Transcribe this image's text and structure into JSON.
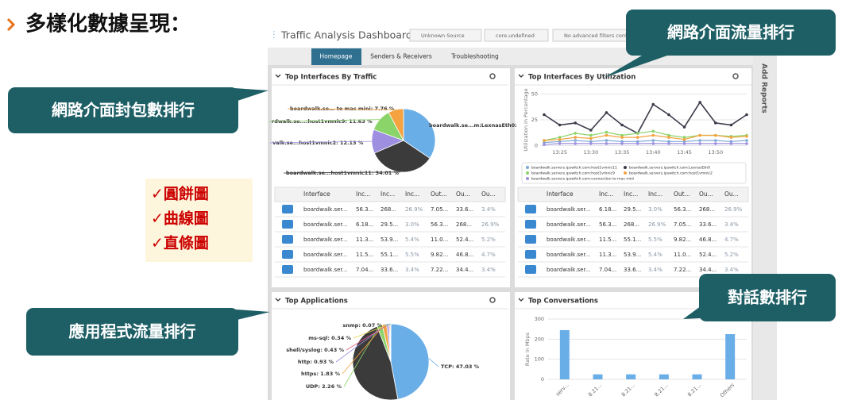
{
  "slide": {
    "title": "多樣化數據呈現：",
    "checklist": [
      "✓圓餅圖",
      "✓曲線圖",
      "✓直條圖"
    ]
  },
  "callouts": [
    "網路介面流量排行",
    "網路介面封包數排行",
    "應用程式流量排行",
    "對話數排行"
  ],
  "dashboard": {
    "title": "Traffic Analysis Dashboard",
    "filters": [
      "Unknown Source",
      "core.undefined",
      "No advanced filters configured"
    ],
    "tabs": [
      "Homepage",
      "Senders & Receivers",
      "Troubleshooting"
    ],
    "side_tab": "Add Reports",
    "panels": [
      {
        "title": "Top Interfaces By Traffic",
        "chart": {
          "type": "pie",
          "labels": [
            "boardwalk.se...m:LexnasEth0:",
            "boardwalk.se...host1vmnic11: 34.01 %",
            "valk.se...host1vmnic2: 12.13 %",
            "rdwalk.se...:host1vmnic9: 11.63 %",
            "boardwalk.se... to mac mini: 7.76 %"
          ],
          "values": [
            34.47,
            34.01,
            12.13,
            11.63,
            7.76
          ],
          "colors": [
            "#6aaee8",
            "#3b3b3b",
            "#9f8fe0",
            "#8bd46a",
            "#f4a340"
          ]
        },
        "table": {
          "columns": [
            "Interface",
            "Inc...",
            "Inc...",
            "Inc...",
            "Out...",
            "Ou...",
            "Ou..."
          ],
          "rows": [
            [
              "boardwalk.ser...",
              "56.3...",
              "268...",
              "26.9%",
              "7.05...",
              "33.6...",
              "3.4%"
            ],
            [
              "boardwalk.ser...",
              "6.18...",
              "29.5...",
              "3.0%",
              "56.3...",
              "268...",
              "26.9%"
            ],
            [
              "boardwalk.ser...",
              "11.3...",
              "53.9...",
              "5.4%",
              "11.0...",
              "52.4...",
              "5.2%"
            ],
            [
              "boardwalk.ser...",
              "11.5...",
              "55.1...",
              "5.5%",
              "9.82...",
              "46.8...",
              "4.7%"
            ],
            [
              "boardwalk.ser...",
              "7.04...",
              "33.6...",
              "3.4%",
              "7.22...",
              "34.4...",
              "3.4%"
            ]
          ]
        }
      },
      {
        "title": "Top Interfaces By Utilization",
        "chart": {
          "type": "line",
          "y_label": "Utilization in Percentage",
          "categories": [
            null,
            "13:25",
            null,
            "13:30",
            null,
            "13:35",
            null,
            "13:40",
            null,
            "13:45",
            null,
            "13:50",
            null,
            null
          ],
          "ylim": [
            -5,
            55
          ],
          "yticks": [
            0,
            25,
            50
          ],
          "series": [
            {
              "name": "boardwalk.servers.ipswitch.com:host1vmnic11",
              "color": "#7fa7d6",
              "values": [
                3,
                4,
                5,
                4,
                5,
                4,
                4,
                5,
                4,
                4,
                5,
                5,
                4,
                5
              ]
            },
            {
              "name": "boardwalk.servers.ipswitch.com:LexnasEth0",
              "color": "#3b3b4a",
              "values": [
                30,
                20,
                22,
                15,
                32,
                20,
                12,
                40,
                30,
                18,
                42,
                22,
                20,
                30
              ]
            },
            {
              "name": "boardwalk.servers.ipswitch.com:host1vmnic9",
              "color": "#8bd46a",
              "values": [
                5,
                8,
                12,
                10,
                13,
                10,
                12,
                14,
                10,
                8,
                10,
                10,
                9,
                10
              ]
            },
            {
              "name": "boardwalk.servers.ipswitch.com:host1vmnic2",
              "color": "#f4a340",
              "values": [
                5,
                6,
                8,
                7,
                10,
                8,
                8,
                10,
                8,
                6,
                10,
                10,
                8,
                9
              ]
            },
            {
              "name": "boardwalk.servers.ipswitch.com:connection to mac mini",
              "color": "#9f8fe0",
              "values": [
                1,
                2,
                2,
                2,
                2,
                2,
                2,
                2,
                2,
                2,
                2,
                2,
                2,
                2
              ]
            }
          ]
        },
        "table": {
          "columns": [
            "Interface",
            "Inc...",
            "Inc...",
            "Inc...",
            "Out...",
            "Ou...",
            "Ou..."
          ],
          "rows": [
            [
              "boardwalk.ser...",
              "6.18...",
              "29.5...",
              "3.0%",
              "56.3...",
              "268...",
              "26.9%"
            ],
            [
              "boardwalk.ser...",
              "56.3...",
              "268...",
              "26.9%",
              "7.05...",
              "33.6...",
              "3.4%"
            ],
            [
              "boardwalk.ser...",
              "11.5...",
              "55.1...",
              "5.5%",
              "9.82...",
              "46.8...",
              "4.7%"
            ],
            [
              "boardwalk.ser...",
              "11.3...",
              "53.9...",
              "5.4%",
              "11.0...",
              "52.4...",
              "5.2%"
            ],
            [
              "boardwalk.ser...",
              "7.04...",
              "33.6...",
              "3.4%",
              "7.22...",
              "34.4...",
              "3.4%"
            ]
          ]
        }
      },
      {
        "title": "Top Applications",
        "chart": {
          "type": "pie",
          "labels": [
            "TCP: 47.03 %",
            null,
            "UDP: 2.26 %",
            "https: 1.83 %",
            "http: 0.93 %",
            "shell/syslog: 0.43 %",
            "ms-sql: 0.34 %",
            "snmp: 0.07 %"
          ],
          "values": [
            47.03,
            47.11,
            2.26,
            1.83,
            0.93,
            0.43,
            0.34,
            0.07
          ],
          "colors": [
            "#6aaee8",
            "#3b3b3b",
            "#8bd46a",
            "#f4a340",
            "#9f8fe0",
            "#e85c8a",
            "#e6d44a",
            "#4fc3c8"
          ]
        }
      },
      {
        "title": "Top Conversations",
        "chart": {
          "type": "bar",
          "y_label": "Rate in Mbps",
          "color": "#6aaee8",
          "categories": [
            "serv...",
            "8.21...",
            "8.21...",
            "8.21...",
            "8.21...",
            "Others"
          ],
          "values": [
            245,
            25,
            25,
            25,
            25,
            225
          ],
          "ylim": [
            0,
            300
          ],
          "yticks": [
            0,
            100,
            200,
            300
          ]
        }
      }
    ]
  }
}
